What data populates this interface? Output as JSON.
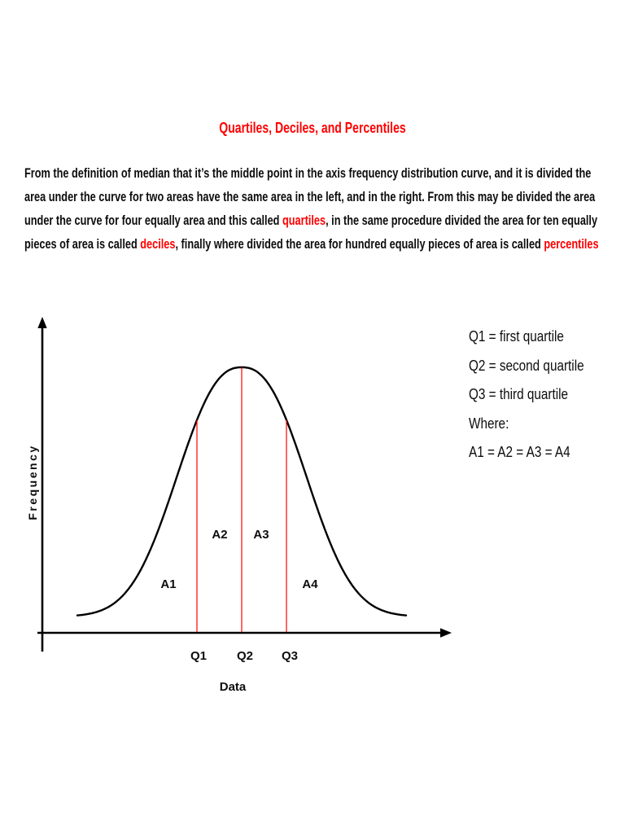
{
  "colors": {
    "accent_red": "#ff0000",
    "body_text": "#0d0d0d"
  },
  "page": {
    "title": "Quartiles, Deciles, and Percentiles"
  },
  "paragraph": {
    "segments": [
      {
        "text": "From the definition of median that it’s the middle point in the axis frequency distribution curve, and it is divided the area under the curve for two areas have the same area in the left, and in the right. From this may be divided the area under the curve for four equally area and this called ",
        "red": false
      },
      {
        "text": "quartiles",
        "red": true
      },
      {
        "text": ", in the same procedure divided the area for ten equally pieces of area is called ",
        "red": false
      },
      {
        "text": "deciles",
        "red": true
      },
      {
        "text": ", finally where divided the area for hundred equally pieces of area is called ",
        "red": false
      },
      {
        "text": "percentiles",
        "red": true
      }
    ]
  },
  "chart_data": {
    "type": "area",
    "title": "",
    "curve": "normal (bell-shaped) frequency distribution",
    "xlabel": "Data",
    "ylabel": "Frequency",
    "x_tick_labels": [
      "Q1",
      "Q2",
      "Q3"
    ],
    "area_labels": [
      "A1",
      "A2",
      "A3",
      "A4"
    ],
    "quartile_line_color": "#ff0000",
    "curve_color": "#000000",
    "grid": false,
    "legend_position": "right",
    "notes": "Vertical red lines at quartiles Q1, Q2, Q3 divide the area under the curve into four equal areas A1-A4"
  },
  "legend": {
    "lines": [
      "Q1 = first quartile",
      "Q2 = second quartile",
      "Q3 = third quartile",
      "Where:",
      "A1 = A2 = A3 = A4"
    ]
  }
}
